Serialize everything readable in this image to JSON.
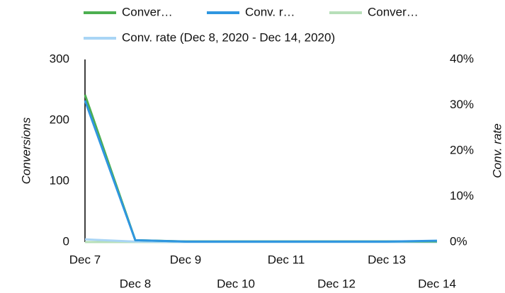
{
  "chart_data": {
    "type": "line",
    "categories": [
      "Dec 7",
      "Dec 8",
      "Dec 9",
      "Dec 10",
      "Dec 11",
      "Dec 12",
      "Dec 13",
      "Dec 14"
    ],
    "series": [
      {
        "name": "Conver…",
        "color": "#4caf50",
        "values": [
          242,
          3,
          1,
          1,
          1,
          1,
          1,
          1
        ]
      },
      {
        "name": "Conv. r…",
        "color": "#2f96e0",
        "axis": "y2",
        "values": [
          31,
          0.4,
          0.1,
          0.1,
          0.1,
          0.1,
          0.1,
          0.3
        ]
      },
      {
        "name": "Conver…",
        "color": "#b7dfb9",
        "values": [
          0,
          0,
          0,
          0,
          0,
          0,
          0,
          0
        ]
      },
      {
        "name": "Conv. rate (Dec 8, 2020 - Dec 14, 2020)",
        "color": "#a9d5f5",
        "axis": "y2",
        "values": [
          0.6,
          0.1,
          0,
          0,
          0,
          0,
          0,
          0
        ]
      }
    ],
    "ylabel": "Conversions",
    "y2label": "Conv. rate",
    "ylim": [
      0,
      300
    ],
    "yticks": [
      0,
      100,
      200,
      300
    ],
    "y2lim": [
      0,
      40
    ],
    "y2ticks": [
      {
        "value": 0,
        "label": "0%"
      },
      {
        "value": 10,
        "label": "10%"
      },
      {
        "value": 20,
        "label": "20%"
      },
      {
        "value": 30,
        "label": "30%"
      },
      {
        "value": 40,
        "label": "40%"
      }
    ]
  }
}
